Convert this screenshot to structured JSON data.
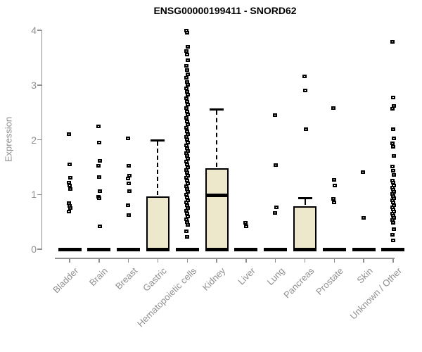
{
  "chart_data": {
    "type": "boxplot",
    "title": "ENSG00000199411 - SNORD62",
    "xlabel": "",
    "ylabel": "Expression",
    "ylim": [
      0,
      4
    ],
    "yticks": [
      0,
      1,
      2,
      3,
      4
    ],
    "grid": false,
    "legend": "none",
    "categories": [
      "Bladder",
      "Brain",
      "Breast",
      "Gastric",
      "Hematopoietic cells",
      "Kidney",
      "Liver",
      "Lung",
      "Pancreas",
      "Prostate",
      "Skin",
      "Unknown / Other"
    ],
    "series": [
      {
        "category": "Bladder",
        "q1": 0,
        "median": 0,
        "q3": 0,
        "whisker_low": 0,
        "whisker_high": 0,
        "outliers": [
          2.1,
          1.55,
          1.3,
          1.22,
          1.17,
          1.1,
          0.84,
          0.79,
          0.75,
          0.69
        ]
      },
      {
        "category": "Brain",
        "q1": 0,
        "median": 0,
        "q3": 0,
        "whisker_low": 0,
        "whisker_high": 0,
        "outliers": [
          2.25,
          1.95,
          1.62,
          1.52,
          1.32,
          1.06,
          0.96,
          0.93,
          0.42
        ]
      },
      {
        "category": "Breast",
        "q1": 0,
        "median": 0,
        "q3": 0,
        "whisker_low": 0,
        "whisker_high": 0,
        "outliers": [
          2.03,
          1.53,
          1.34,
          1.29,
          1.2,
          1.06,
          0.8,
          0.62
        ]
      },
      {
        "category": "Gastric",
        "q1": 0,
        "median": 0,
        "q3": 0.97,
        "whisker_low": 0,
        "whisker_high": 1.99,
        "outliers": []
      },
      {
        "category": "Hematopoietic cells",
        "q1": 0,
        "median": 0,
        "q3": 0,
        "whisker_low": 0,
        "whisker_high": 0,
        "outliers": [
          4.0,
          3.96,
          3.7,
          3.62,
          3.55,
          3.45,
          3.35,
          3.27,
          3.2,
          3.13,
          3.06,
          3.0,
          2.94,
          2.88,
          2.82,
          2.76,
          2.7,
          2.64,
          2.58,
          2.52,
          2.46,
          2.4,
          2.34,
          2.28,
          2.22,
          2.16,
          2.1,
          2.05,
          2.0,
          1.95,
          1.9,
          1.85,
          1.8,
          1.75,
          1.7,
          1.65,
          1.6,
          1.55,
          1.5,
          1.45,
          1.4,
          1.35,
          1.3,
          1.25,
          1.2,
          1.15,
          1.1,
          1.05,
          1.0,
          0.95,
          0.9,
          0.85,
          0.8,
          0.75,
          0.7,
          0.65,
          0.6,
          0.55,
          0.5,
          0.45,
          0.33,
          0.22
        ]
      },
      {
        "category": "Kidney",
        "q1": 0,
        "median": 0.98,
        "q3": 1.48,
        "whisker_low": 0,
        "whisker_high": 2.56,
        "outliers": []
      },
      {
        "category": "Liver",
        "q1": 0,
        "median": 0,
        "q3": 0,
        "whisker_low": 0,
        "whisker_high": 0,
        "outliers": [
          0.48,
          0.42
        ]
      },
      {
        "category": "Lung",
        "q1": 0,
        "median": 0,
        "q3": 0,
        "whisker_low": 0,
        "whisker_high": 0,
        "outliers": [
          2.45,
          1.54,
          0.76,
          0.66
        ]
      },
      {
        "category": "Pancreas",
        "q1": 0,
        "median": 0,
        "q3": 0.78,
        "whisker_low": 0,
        "whisker_high": 0.94,
        "outliers": [
          3.16,
          2.9,
          2.19
        ]
      },
      {
        "category": "Prostate",
        "q1": 0,
        "median": 0,
        "q3": 0,
        "whisker_low": 0,
        "whisker_high": 0,
        "outliers": [
          2.58,
          1.27,
          1.17,
          0.92,
          0.85
        ]
      },
      {
        "category": "Skin",
        "q1": 0,
        "median": 0,
        "q3": 0,
        "whisker_low": 0,
        "whisker_high": 0,
        "outliers": [
          1.41,
          0.57
        ]
      },
      {
        "category": "Unknown / Other",
        "q1": 0,
        "median": 0,
        "q3": 0,
        "whisker_low": 0,
        "whisker_high": 0,
        "outliers": [
          3.79,
          2.77,
          2.62,
          2.56,
          2.19,
          2.02,
          1.94,
          1.87,
          1.7,
          1.51,
          1.44,
          1.36,
          1.26,
          1.21,
          1.17,
          1.13,
          1.09,
          1.05,
          1.01,
          0.97,
          0.93,
          0.89,
          0.85,
          0.81,
          0.77,
          0.73,
          0.69,
          0.65,
          0.61,
          0.57,
          0.53,
          0.48,
          0.37,
          0.27,
          0.16
        ]
      }
    ],
    "colors": {
      "box_fill": "#EDE7CC",
      "box_border": "#000000",
      "median": "#000000",
      "outlier": "#000000",
      "axis": "#8f8f8f",
      "tick_label": "#8f8f8f",
      "title": "#000000",
      "background": "#ffffff"
    }
  }
}
